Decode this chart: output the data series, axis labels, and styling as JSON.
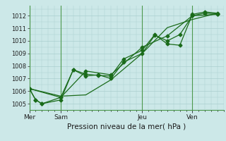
{
  "xlabel": "Pression niveau de la mer( hPa )",
  "ylim": [
    1004.5,
    1012.8
  ],
  "yticks": [
    1005,
    1006,
    1007,
    1008,
    1009,
    1010,
    1011,
    1012
  ],
  "background_color": "#cce8e8",
  "grid_color": "#aacfcf",
  "line_color": "#1a6b1a",
  "vline_color": "#4d994d",
  "day_labels": [
    "Mer",
    "Sam",
    "Jeu",
    "Ven"
  ],
  "day_positions": [
    0,
    30,
    108,
    156
  ],
  "xmin": 0,
  "xmax": 186,
  "series1_x": [
    0,
    6,
    12,
    30,
    42,
    54,
    66,
    78,
    90,
    108,
    120,
    132,
    144,
    156,
    168,
    180
  ],
  "series1_y": [
    1006.2,
    1005.3,
    1005.0,
    1005.3,
    1007.7,
    1007.2,
    1007.3,
    1007.0,
    1008.3,
    1009.0,
    1010.45,
    1010.0,
    1010.5,
    1012.0,
    1012.2,
    1012.15
  ],
  "series2_x": [
    0,
    6,
    12,
    30,
    42,
    54,
    66,
    78,
    90,
    108,
    120,
    132,
    144,
    156,
    168,
    180
  ],
  "series2_y": [
    1006.2,
    1005.3,
    1005.0,
    1005.5,
    1007.7,
    1007.35,
    1007.25,
    1007.2,
    1008.55,
    1009.25,
    1010.5,
    1009.75,
    1009.65,
    1012.1,
    1012.3,
    1012.2
  ],
  "series3_x": [
    0,
    30,
    54,
    78,
    108,
    132,
    156,
    180
  ],
  "series3_y": [
    1006.2,
    1005.5,
    1007.6,
    1007.3,
    1009.5,
    1010.4,
    1012.0,
    1012.1
  ],
  "series4_x": [
    0,
    30,
    54,
    78,
    108,
    132,
    156,
    180
  ],
  "series4_y": [
    1006.2,
    1005.6,
    1005.7,
    1006.9,
    1009.0,
    1011.05,
    1011.7,
    1012.2
  ]
}
